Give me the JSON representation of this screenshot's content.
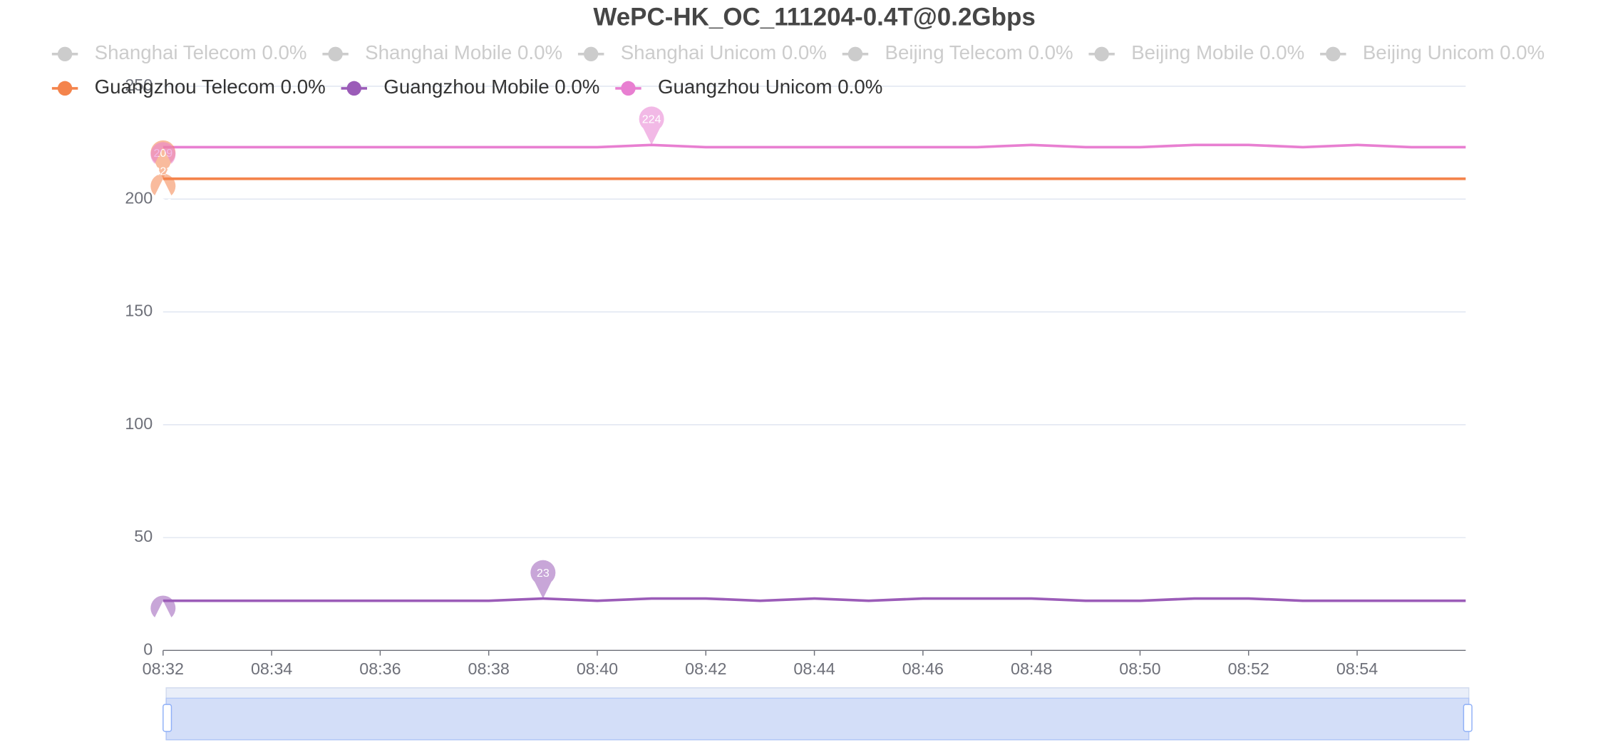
{
  "chart_data": {
    "type": "line",
    "title": "WePC-HK_OC_111204-0.4T@0.2Gbps",
    "categories": [
      "08:32",
      null,
      "08:34",
      null,
      "08:36",
      null,
      "08:38",
      null,
      "08:40",
      null,
      "08:42",
      null,
      "08:44",
      null,
      "08:46",
      null,
      "08:48",
      null,
      "08:50",
      null,
      "08:52",
      null,
      "08:54",
      null,
      null
    ],
    "ylim": [
      0,
      250
    ],
    "yticks": [
      0,
      50,
      100,
      150,
      200,
      250
    ],
    "grid": true,
    "series": [
      {
        "name": "Shanghai Telecom 0.0%",
        "color": "#cccccc",
        "visible": false
      },
      {
        "name": "Shanghai Mobile 0.0%",
        "color": "#cccccc",
        "visible": false
      },
      {
        "name": "Shanghai Unicom 0.0%",
        "color": "#cccccc",
        "visible": false
      },
      {
        "name": "Beijing Telecom 0.0%",
        "color": "#cccccc",
        "visible": false
      },
      {
        "name": "Beijing Mobile 0.0%",
        "color": "#cccccc",
        "visible": false
      },
      {
        "name": "Beijing Unicom 0.0%",
        "color": "#cccccc",
        "visible": false
      },
      {
        "name": "Guangzhou Telecom 0.0%",
        "color": "#f4844c",
        "visible": true,
        "max": 209,
        "min": 209,
        "values": [
          209,
          209,
          209,
          209,
          209,
          209,
          209,
          209,
          209,
          209,
          209,
          209,
          209,
          209,
          209,
          209,
          209,
          209,
          209,
          209,
          209,
          209,
          209,
          209,
          209
        ]
      },
      {
        "name": "Guangzhou Mobile 0.0%",
        "color": "#9b5cb8",
        "visible": true,
        "max": 23,
        "min": 22,
        "values": [
          22,
          22,
          22,
          22,
          22,
          22,
          22,
          23,
          22,
          23,
          23,
          22,
          23,
          22,
          23,
          23,
          23,
          22,
          22,
          23,
          23,
          22,
          22,
          22,
          22
        ]
      },
      {
        "name": "Guangzhou Unicom 0.0%",
        "color": "#e87fd1",
        "visible": true,
        "max": 224,
        "min": 223,
        "values": [
          223,
          223,
          223,
          223,
          223,
          223,
          223,
          223,
          223,
          224,
          223,
          223,
          223,
          223,
          223,
          223,
          224,
          223,
          223,
          224,
          224,
          223,
          224,
          223,
          223
        ]
      }
    ]
  }
}
